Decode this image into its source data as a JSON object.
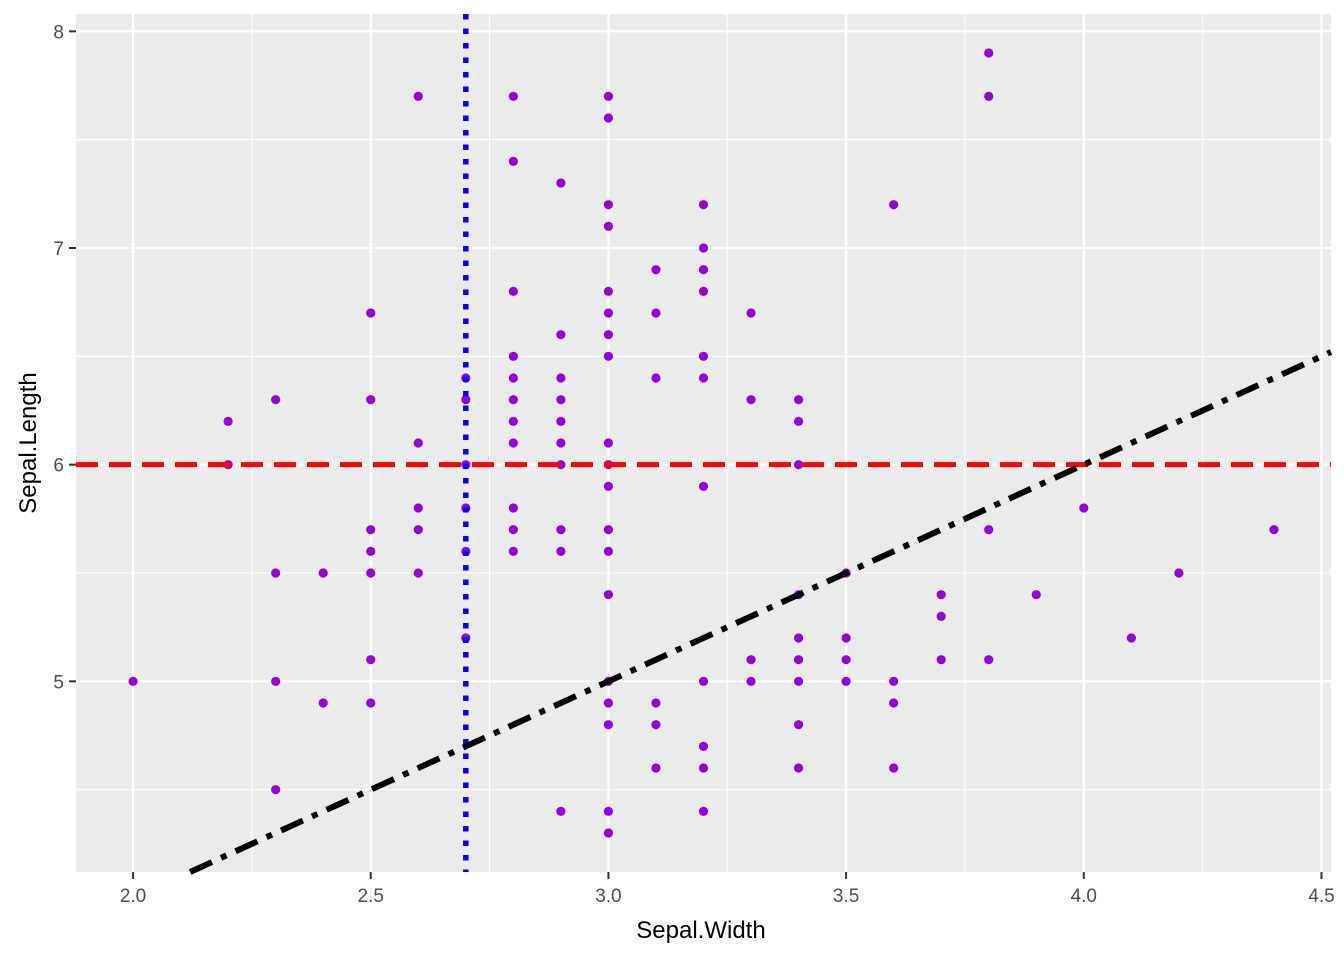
{
  "chart_data": {
    "type": "scatter",
    "title": "",
    "xlabel": "Sepal.Width",
    "ylabel": "Sepal.Length",
    "xlim": [
      1.88,
      4.52
    ],
    "ylim": [
      4.12,
      8.08
    ],
    "x_ticks": [
      2.0,
      2.5,
      3.0,
      3.5,
      4.0,
      4.5
    ],
    "x_tick_labels": [
      "2.0",
      "2.5",
      "3.0",
      "3.5",
      "4.0",
      "4.5"
    ],
    "y_ticks": [
      5,
      6,
      7,
      8
    ],
    "y_tick_labels": [
      "5",
      "6",
      "7",
      "8"
    ],
    "grid": true,
    "background": "#ebebeb",
    "point_color": "#9400d3",
    "points": [
      [
        2.0,
        5.0
      ],
      [
        2.2,
        6.2
      ],
      [
        2.2,
        6.0
      ],
      [
        2.3,
        6.3
      ],
      [
        2.3,
        5.5
      ],
      [
        2.3,
        5.0
      ],
      [
        2.3,
        4.5
      ],
      [
        2.4,
        5.5
      ],
      [
        2.4,
        4.9
      ],
      [
        2.5,
        6.7
      ],
      [
        2.5,
        6.3
      ],
      [
        2.5,
        5.7
      ],
      [
        2.5,
        5.6
      ],
      [
        2.5,
        5.5
      ],
      [
        2.5,
        5.1
      ],
      [
        2.5,
        4.9
      ],
      [
        2.6,
        7.7
      ],
      [
        2.6,
        6.1
      ],
      [
        2.6,
        5.8
      ],
      [
        2.6,
        5.7
      ],
      [
        2.6,
        5.5
      ],
      [
        2.7,
        6.4
      ],
      [
        2.7,
        6.3
      ],
      [
        2.7,
        6.0
      ],
      [
        2.7,
        5.8
      ],
      [
        2.7,
        5.6
      ],
      [
        2.7,
        5.2
      ],
      [
        2.8,
        7.7
      ],
      [
        2.8,
        7.4
      ],
      [
        2.8,
        6.8
      ],
      [
        2.8,
        6.5
      ],
      [
        2.8,
        6.4
      ],
      [
        2.8,
        6.3
      ],
      [
        2.8,
        6.2
      ],
      [
        2.8,
        6.1
      ],
      [
        2.8,
        5.8
      ],
      [
        2.8,
        5.7
      ],
      [
        2.8,
        5.6
      ],
      [
        2.9,
        7.3
      ],
      [
        2.9,
        6.6
      ],
      [
        2.9,
        6.4
      ],
      [
        2.9,
        6.3
      ],
      [
        2.9,
        6.2
      ],
      [
        2.9,
        6.1
      ],
      [
        2.9,
        6.0
      ],
      [
        2.9,
        5.7
      ],
      [
        2.9,
        5.6
      ],
      [
        2.9,
        4.4
      ],
      [
        3.0,
        7.7
      ],
      [
        3.0,
        7.6
      ],
      [
        3.0,
        7.2
      ],
      [
        3.0,
        7.1
      ],
      [
        3.0,
        6.8
      ],
      [
        3.0,
        6.7
      ],
      [
        3.0,
        6.6
      ],
      [
        3.0,
        6.5
      ],
      [
        3.0,
        6.1
      ],
      [
        3.0,
        6.0
      ],
      [
        3.0,
        5.9
      ],
      [
        3.0,
        5.7
      ],
      [
        3.0,
        5.6
      ],
      [
        3.0,
        5.4
      ],
      [
        3.0,
        5.0
      ],
      [
        3.0,
        4.9
      ],
      [
        3.0,
        4.8
      ],
      [
        3.0,
        4.4
      ],
      [
        3.0,
        4.3
      ],
      [
        3.1,
        6.9
      ],
      [
        3.1,
        6.7
      ],
      [
        3.1,
        6.4
      ],
      [
        3.1,
        4.9
      ],
      [
        3.1,
        4.8
      ],
      [
        3.1,
        4.6
      ],
      [
        3.2,
        7.2
      ],
      [
        3.2,
        7.0
      ],
      [
        3.2,
        6.9
      ],
      [
        3.2,
        6.8
      ],
      [
        3.2,
        6.5
      ],
      [
        3.2,
        6.4
      ],
      [
        3.2,
        5.9
      ],
      [
        3.2,
        5.0
      ],
      [
        3.2,
        4.7
      ],
      [
        3.2,
        4.6
      ],
      [
        3.2,
        4.4
      ],
      [
        3.3,
        6.7
      ],
      [
        3.3,
        6.3
      ],
      [
        3.3,
        5.1
      ],
      [
        3.3,
        5.0
      ],
      [
        3.4,
        6.3
      ],
      [
        3.4,
        6.2
      ],
      [
        3.4,
        6.0
      ],
      [
        3.4,
        5.4
      ],
      [
        3.4,
        5.2
      ],
      [
        3.4,
        5.1
      ],
      [
        3.4,
        5.0
      ],
      [
        3.4,
        4.8
      ],
      [
        3.4,
        4.6
      ],
      [
        3.5,
        5.5
      ],
      [
        3.5,
        5.2
      ],
      [
        3.5,
        5.1
      ],
      [
        3.5,
        5.0
      ],
      [
        3.6,
        7.2
      ],
      [
        3.6,
        5.0
      ],
      [
        3.6,
        4.9
      ],
      [
        3.6,
        4.6
      ],
      [
        3.7,
        5.4
      ],
      [
        3.7,
        5.3
      ],
      [
        3.7,
        5.1
      ],
      [
        3.8,
        7.9
      ],
      [
        3.8,
        7.7
      ],
      [
        3.8,
        5.7
      ],
      [
        3.8,
        5.1
      ],
      [
        3.9,
        5.4
      ],
      [
        4.0,
        5.8
      ],
      [
        4.1,
        5.2
      ],
      [
        4.2,
        5.5
      ],
      [
        4.4,
        5.7
      ]
    ],
    "reference_lines": {
      "vline": {
        "x": 2.7,
        "color": "#0000ff",
        "style": "dotted"
      },
      "hline": {
        "y": 6.0,
        "color": "#ff0000",
        "style": "dashed"
      },
      "abline": {
        "intercept": 2.0,
        "slope": 1.0,
        "color": "#000000",
        "style": "dotdash"
      }
    }
  }
}
